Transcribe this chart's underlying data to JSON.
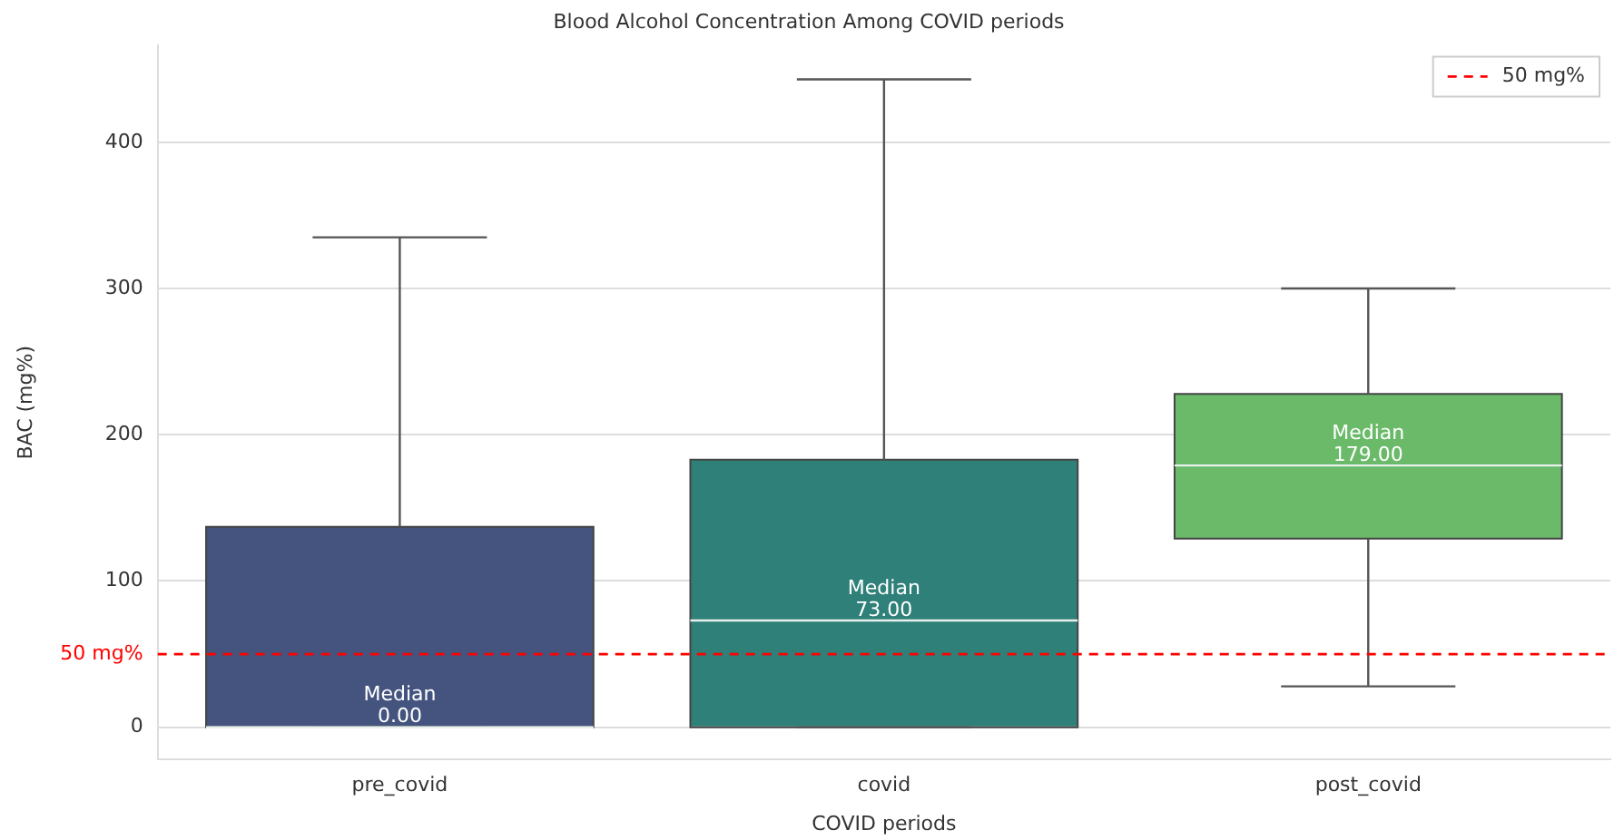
{
  "chart_data": {
    "type": "box",
    "title": "Blood Alcohol Concentration Among COVID periods",
    "xlabel": "COVID periods",
    "ylabel": "BAC (mg%)",
    "categories": [
      "pre_covid",
      "covid",
      "post_covid"
    ],
    "colors": [
      "#44547e",
      "#2e8079",
      "#6aba6a"
    ],
    "boxes": [
      {
        "low": 0,
        "q1": 0,
        "median": 0,
        "q3": 137,
        "high": 335
      },
      {
        "low": 0,
        "q1": 0,
        "median": 73,
        "q3": 183,
        "high": 443
      },
      {
        "low": 28,
        "q1": 129,
        "median": 179,
        "q3": 228,
        "high": 300
      }
    ],
    "ylim": [
      -22,
      466
    ],
    "yticks": [
      0,
      {
        "value": 50,
        "label": "50 mg%"
      },
      100,
      200,
      300,
      400
    ],
    "ref_lines": [
      {
        "axis": "y",
        "value": 50,
        "label": "50 mg%",
        "color": "#ff0000",
        "line_style": "dashed"
      }
    ],
    "annotations": [
      {
        "text": "Median\n0.00",
        "x": "pre_covid",
        "y": 0
      },
      {
        "text": "Median\n73.00",
        "x": "covid",
        "y": 73
      },
      {
        "text": "Median\n179.00",
        "x": "post_covid",
        "y": 179
      }
    ],
    "grid": "y",
    "legend": "top right"
  }
}
